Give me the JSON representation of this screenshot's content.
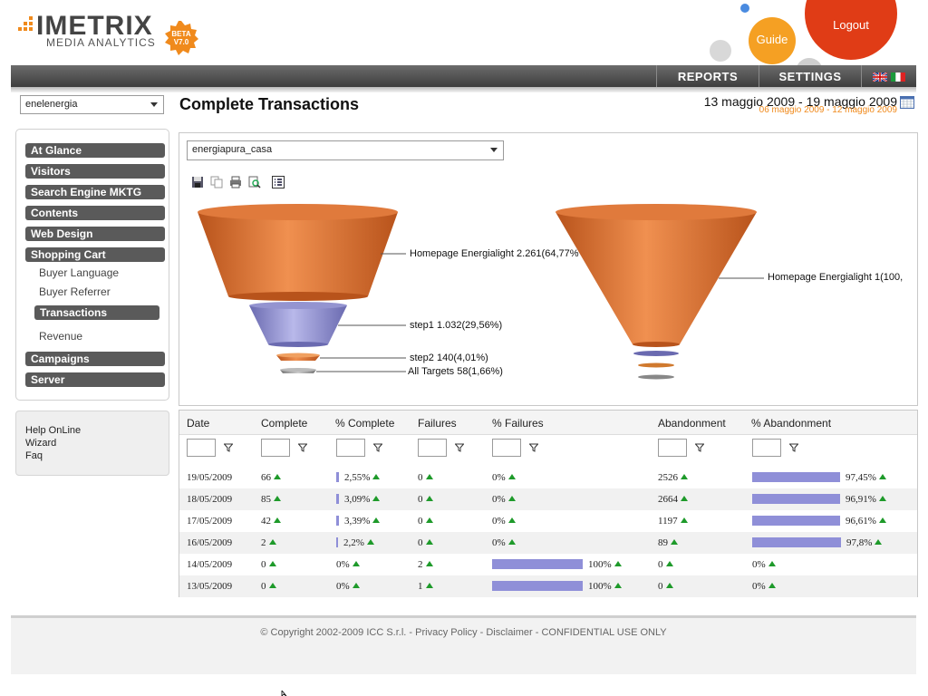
{
  "header": {
    "logo_word": "IMETRIX",
    "logo_sub": "MEDIA ANALYTICS",
    "badge_line1": "BETA",
    "badge_line2": "V7.0",
    "guide_label": "Guide",
    "logout_label": "Logout",
    "nav": [
      {
        "label": "REPORTS"
      },
      {
        "label": "SETTINGS"
      }
    ],
    "colors": {
      "accent": "#f08a1c",
      "logout": "#e03c16",
      "guide": "#f5a023",
      "bar": "#8f8fd8"
    }
  },
  "sidebar": {
    "site_select": "enelenergia",
    "menu": [
      {
        "label": "At Glance",
        "type": "main"
      },
      {
        "label": "Visitors",
        "type": "main"
      },
      {
        "label": "Search Engine MKTG",
        "type": "main"
      },
      {
        "label": "Contents",
        "type": "main"
      },
      {
        "label": "Web Design",
        "type": "main"
      },
      {
        "label": "Shopping Cart",
        "type": "main"
      },
      {
        "label": "Buyer Language",
        "type": "sub"
      },
      {
        "label": "Buyer Referrer",
        "type": "sub"
      },
      {
        "label": "Transactions",
        "type": "active"
      },
      {
        "label": "Revenue",
        "type": "sub"
      },
      {
        "label": "Campaigns",
        "type": "main"
      },
      {
        "label": "Server",
        "type": "main"
      }
    ],
    "help": [
      "Help OnLine",
      "Wizard",
      "Faq"
    ]
  },
  "main": {
    "title": "Complete Transactions",
    "date_range": "13 maggio 2009 - 19 maggio 2009",
    "prev_range": "06 maggio 2009 - 12 maggio 2009",
    "funnel_select": "energiapura_casa",
    "funnel_left": [
      {
        "label": "Homepage Energialight 2.261(64,77%"
      },
      {
        "label": "step1 1.032(29,56%)"
      },
      {
        "label": "step2 140(4,01%)"
      },
      {
        "label": "All Targets 58(1,66%)"
      }
    ],
    "funnel_right": [
      {
        "label": "Homepage Energialight 1(100,"
      }
    ]
  },
  "table": {
    "columns": [
      "Date",
      "Complete",
      "% Complete",
      "Failures",
      "% Failures",
      "Abandonment",
      "% Abandonment"
    ],
    "rows": [
      {
        "date": "19/05/2009",
        "complete": "66",
        "pct_complete": "2,55%",
        "pct_complete_v": 2.55,
        "failures": "0",
        "pct_failures": "0%",
        "pct_failures_v": 0,
        "abandonment": "2526",
        "pct_abandonment": "97,45%",
        "pct_abandonment_v": 97.45
      },
      {
        "date": "18/05/2009",
        "complete": "85",
        "pct_complete": "3,09%",
        "pct_complete_v": 3.09,
        "failures": "0",
        "pct_failures": "0%",
        "pct_failures_v": 0,
        "abandonment": "2664",
        "pct_abandonment": "96,91%",
        "pct_abandonment_v": 96.91
      },
      {
        "date": "17/05/2009",
        "complete": "42",
        "pct_complete": "3,39%",
        "pct_complete_v": 3.39,
        "failures": "0",
        "pct_failures": "0%",
        "pct_failures_v": 0,
        "abandonment": "1197",
        "pct_abandonment": "96,61%",
        "pct_abandonment_v": 96.61
      },
      {
        "date": "16/05/2009",
        "complete": "2",
        "pct_complete": "2,2%",
        "pct_complete_v": 2.2,
        "failures": "0",
        "pct_failures": "0%",
        "pct_failures_v": 0,
        "abandonment": "89",
        "pct_abandonment": "97,8%",
        "pct_abandonment_v": 97.8
      },
      {
        "date": "14/05/2009",
        "complete": "0",
        "pct_complete": "0%",
        "pct_complete_v": 0,
        "failures": "2",
        "pct_failures": "100%",
        "pct_failures_v": 100,
        "abandonment": "0",
        "pct_abandonment": "0%",
        "pct_abandonment_v": 0
      },
      {
        "date": "13/05/2009",
        "complete": "0",
        "pct_complete": "0%",
        "pct_complete_v": 0,
        "failures": "1",
        "pct_failures": "100%",
        "pct_failures_v": 100,
        "abandonment": "0",
        "pct_abandonment": "0%",
        "pct_abandonment_v": 0
      }
    ]
  },
  "footer": {
    "text": "© Copyright 2002-2009 ICC S.r.l. - Privacy Policy - Disclaimer - CONFIDENTIAL USE ONLY"
  }
}
